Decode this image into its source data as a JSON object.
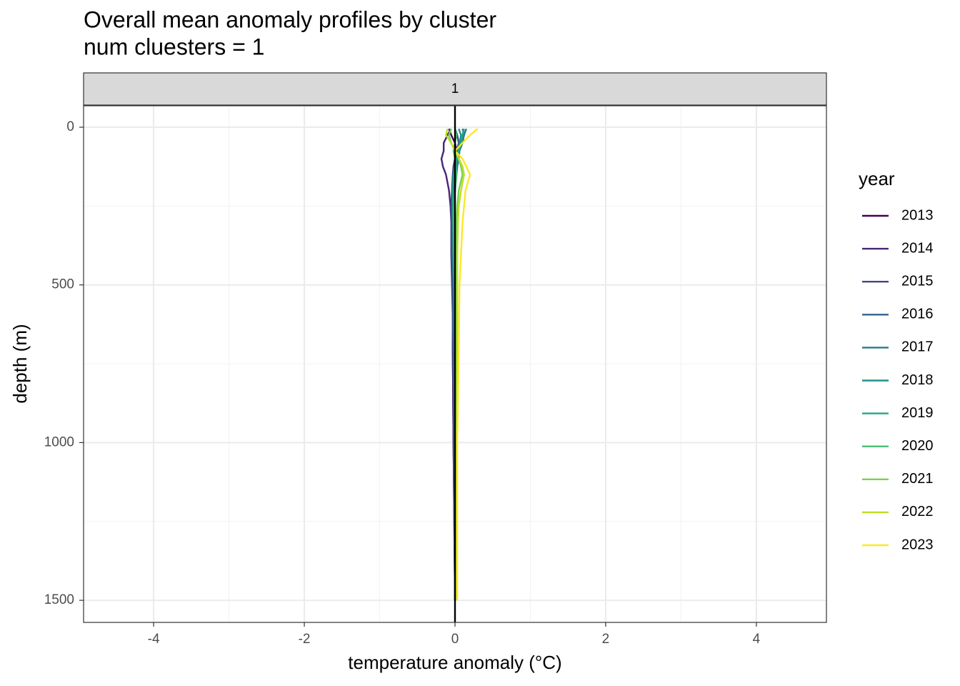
{
  "chart_data": {
    "type": "line",
    "title": "Overall mean anomaly profiles by cluster",
    "subtitle": "num cluesters = 1",
    "facet_label": "1",
    "x_label": "temperature anomaly (°C)",
    "y_label": "depth (m)",
    "legend_title": "year",
    "legend_position": "right",
    "orientation": "vertical",
    "y_reversed": true,
    "grid": true,
    "xlim": [
      -4.93,
      4.93
    ],
    "xticks": [
      -4,
      -2,
      0,
      2,
      4
    ],
    "xminor": [
      -3,
      -1,
      1,
      3
    ],
    "ylim": [
      -68,
      1570
    ],
    "yticks": [
      0,
      500,
      1000,
      1500
    ],
    "yminor": [
      250,
      750,
      1250
    ],
    "reference_x": 0,
    "reference_color": "#000000",
    "depths": [
      5,
      25,
      50,
      75,
      100,
      125,
      150,
      200,
      250,
      300,
      400,
      500,
      700,
      1000,
      1500
    ],
    "series": [
      {
        "name": "2013",
        "color": "#440154",
        "values": [
          -0.08,
          -0.05,
          0.0,
          0.02,
          0.0,
          -0.02,
          0.0,
          -0.02,
          -0.03,
          -0.02,
          -0.02,
          -0.02,
          -0.03,
          -0.02,
          0.0
        ]
      },
      {
        "name": "2014",
        "color": "#482576",
        "values": [
          -0.05,
          -0.1,
          -0.15,
          -0.15,
          -0.18,
          -0.16,
          -0.12,
          -0.08,
          -0.06,
          -0.05,
          -0.04,
          -0.03,
          -0.03,
          -0.02,
          0.0
        ]
      },
      {
        "name": "2015",
        "color": "#414487",
        "values": [
          0.0,
          0.03,
          0.05,
          0.02,
          0.0,
          -0.02,
          -0.03,
          -0.04,
          -0.05,
          -0.05,
          -0.05,
          -0.04,
          -0.02,
          -0.01,
          0.0
        ]
      },
      {
        "name": "2016",
        "color": "#35608D",
        "values": [
          0.1,
          0.12,
          0.08,
          0.05,
          0.03,
          0.02,
          0.0,
          -0.01,
          -0.02,
          -0.02,
          -0.02,
          -0.02,
          -0.01,
          -0.01,
          0.0
        ]
      },
      {
        "name": "2017",
        "color": "#2A788E",
        "values": [
          0.15,
          0.12,
          0.1,
          0.06,
          0.05,
          0.03,
          0.02,
          0.0,
          -0.02,
          -0.03,
          -0.03,
          -0.02,
          -0.02,
          -0.01,
          0.0
        ]
      },
      {
        "name": "2018",
        "color": "#21908C",
        "values": [
          0.05,
          0.08,
          0.06,
          0.04,
          0.03,
          0.02,
          0.01,
          0.0,
          -0.01,
          -0.01,
          -0.01,
          0.0,
          0.0,
          0.0,
          0.0
        ]
      },
      {
        "name": "2019",
        "color": "#22A884",
        "values": [
          0.12,
          0.1,
          0.08,
          0.05,
          0.02,
          0.0,
          -0.02,
          -0.03,
          -0.03,
          -0.02,
          -0.02,
          -0.01,
          0.0,
          0.0,
          0.0
        ]
      },
      {
        "name": "2020",
        "color": "#43BF71",
        "values": [
          0.0,
          0.02,
          0.0,
          -0.02,
          0.0,
          0.01,
          0.02,
          0.0,
          -0.01,
          -0.02,
          -0.01,
          0.0,
          0.01,
          0.01,
          0.01
        ]
      },
      {
        "name": "2021",
        "color": "#7AD151",
        "values": [
          -0.05,
          -0.08,
          -0.05,
          0.0,
          0.05,
          0.08,
          0.1,
          0.05,
          0.03,
          0.02,
          0.02,
          0.02,
          0.02,
          0.02,
          0.02
        ]
      },
      {
        "name": "2022",
        "color": "#BBDF27",
        "values": [
          -0.1,
          -0.12,
          -0.05,
          0.0,
          0.05,
          0.1,
          0.12,
          0.08,
          0.05,
          0.04,
          0.03,
          0.03,
          0.03,
          0.02,
          0.02
        ]
      },
      {
        "name": "2023",
        "color": "#FDE725",
        "values": [
          0.3,
          0.2,
          0.1,
          0.0,
          0.1,
          0.15,
          0.2,
          0.14,
          0.12,
          0.1,
          0.08,
          0.06,
          0.05,
          0.03,
          0.03
        ]
      }
    ]
  }
}
